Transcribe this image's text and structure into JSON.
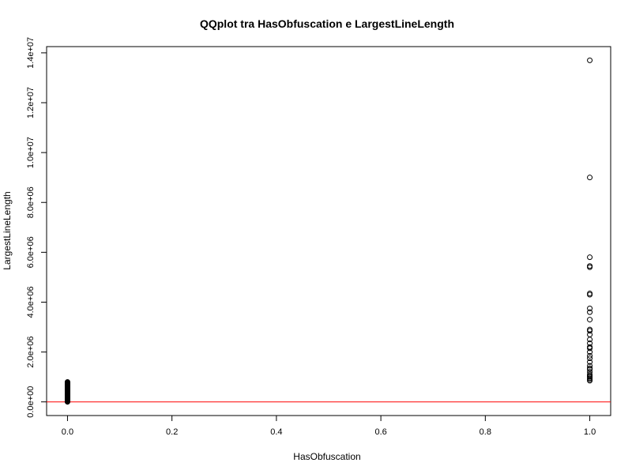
{
  "chart_data": {
    "type": "scatter",
    "title": "QQplot tra HasObfuscation e LargestLineLength",
    "xlabel": "HasObfuscation",
    "ylabel": "LargestLineLength",
    "xlim": [
      -0.04,
      1.04
    ],
    "ylim": [
      -548000,
      14250000
    ],
    "x_ticks": [
      {
        "value": 0.0,
        "label": "0.0"
      },
      {
        "value": 0.2,
        "label": "0.2"
      },
      {
        "value": 0.4,
        "label": "0.4"
      },
      {
        "value": 0.6,
        "label": "0.6"
      },
      {
        "value": 0.8,
        "label": "0.8"
      },
      {
        "value": 1.0,
        "label": "1.0"
      }
    ],
    "y_ticks": [
      {
        "value": 0,
        "label": "0.0e+00"
      },
      {
        "value": 2000000,
        "label": "2.0e+06"
      },
      {
        "value": 4000000,
        "label": "4.0e+06"
      },
      {
        "value": 6000000,
        "label": "6.0e+06"
      },
      {
        "value": 8000000,
        "label": "8.0e+06"
      },
      {
        "value": 10000000,
        "label": "1.0e+07"
      },
      {
        "value": 12000000,
        "label": "1.2e+07"
      },
      {
        "value": 14000000,
        "label": "1.4e+07"
      }
    ],
    "grid": false,
    "reference_line": {
      "type": "horizontal",
      "y": 0,
      "color": "#ff0000"
    },
    "series": [
      {
        "x_value": 0,
        "y": [
          0,
          20000,
          40000,
          60000,
          80000,
          100000,
          120000,
          140000,
          160000,
          180000,
          200000,
          220000,
          240000,
          260000,
          280000,
          300000,
          320000,
          340000,
          360000,
          380000,
          400000,
          420000,
          440000,
          460000,
          480000,
          500000,
          520000,
          540000,
          560000,
          580000,
          600000,
          620000,
          640000,
          660000,
          680000,
          700000,
          720000,
          740000,
          760000,
          780000,
          800000
        ]
      },
      {
        "x_value": 1,
        "y": [
          13700000,
          9000000,
          5800000,
          5450000,
          5400000,
          4350000,
          4300000,
          3750000,
          3600000,
          3300000,
          2900000,
          2850000,
          2700000,
          2500000,
          2350000,
          2200000,
          2150000,
          2000000,
          1850000,
          1750000,
          1600000,
          1450000,
          1350000,
          1300000,
          1200000,
          1100000,
          1050000,
          1000000,
          950000,
          900000,
          850000
        ]
      }
    ]
  }
}
